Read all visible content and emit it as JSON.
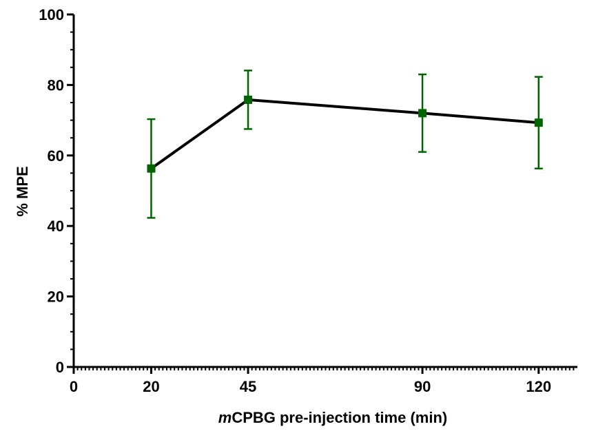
{
  "chart_data": {
    "type": "line",
    "title": "",
    "xlabel_prefix": "m",
    "xlabel_rest": "CPBG pre-injection time (min)",
    "ylabel": "% MPE",
    "xlim": [
      0,
      130
    ],
    "ylim": [
      0,
      100
    ],
    "x_ticks": [
      {
        "value": 0,
        "label": "0"
      },
      {
        "value": 20,
        "label": "20"
      },
      {
        "value": 45,
        "label": "45"
      },
      {
        "value": 90,
        "label": "90"
      },
      {
        "value": 120,
        "label": "120"
      }
    ],
    "y_ticks": [
      {
        "value": 0,
        "label": "0"
      },
      {
        "value": 20,
        "label": "20"
      },
      {
        "value": 40,
        "label": "40"
      },
      {
        "value": 60,
        "label": "60"
      },
      {
        "value": 80,
        "label": "80"
      },
      {
        "value": 100,
        "label": "100"
      }
    ],
    "grid": false,
    "series": [
      {
        "x": [
          20,
          45,
          90,
          120
        ],
        "y": [
          56.3,
          75.8,
          72.0,
          69.3
        ],
        "err_upper": [
          70.3,
          84.1,
          83.0,
          82.3
        ],
        "err_lower": [
          42.3,
          67.5,
          61.0,
          56.3
        ],
        "line_color": "#000000",
        "marker_color": "#006400",
        "marker": "square"
      }
    ]
  }
}
